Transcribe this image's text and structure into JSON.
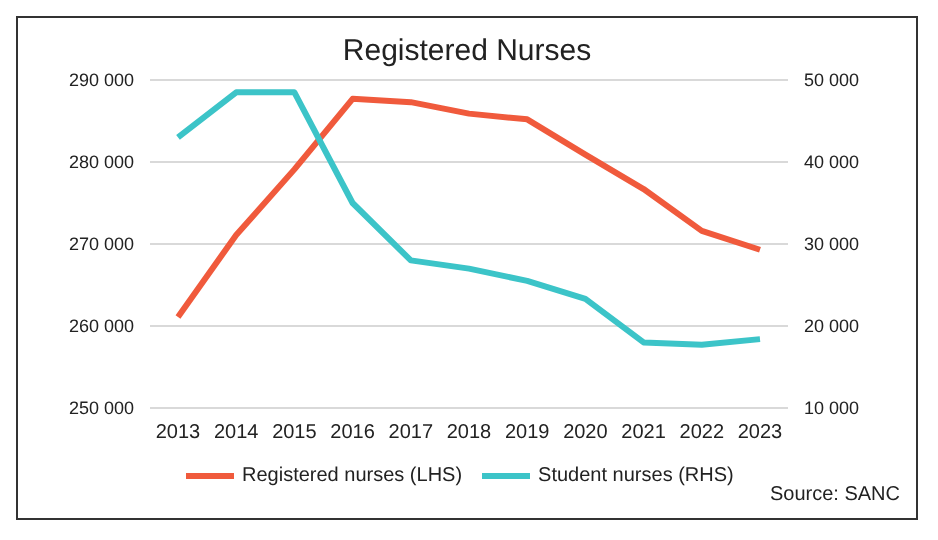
{
  "chart_data": {
    "type": "line",
    "title": "Registered Nurses",
    "categories": [
      "2013",
      "2014",
      "2015",
      "2016",
      "2017",
      "2018",
      "2019",
      "2020",
      "2021",
      "2022",
      "2023"
    ],
    "series": [
      {
        "name": "Registered nurses (LHS)",
        "color": "#f05a3c",
        "values": [
          261100,
          271100,
          279100,
          287700,
          287300,
          285900,
          285200,
          280900,
          276700,
          271600,
          269300
        ]
      },
      {
        "name": "Student nurses (RHS)",
        "color": "#3cc4c8",
        "axis": "y2",
        "values": [
          43000,
          48500,
          48500,
          35000,
          28000,
          27000,
          25500,
          23300,
          18000,
          17700,
          18400
        ]
      }
    ],
    "ylim": [
      250000,
      290000
    ],
    "yticks": [
      {
        "value": 250000,
        "label": "250 000"
      },
      {
        "value": 260000,
        "label": "260 000"
      },
      {
        "value": 270000,
        "label": "270 000"
      },
      {
        "value": 280000,
        "label": "280 000"
      },
      {
        "value": 290000,
        "label": "290 000"
      }
    ],
    "y2lim": [
      10000,
      50000
    ],
    "y2ticks": [
      {
        "value": 10000,
        "label": "10 000"
      },
      {
        "value": 20000,
        "label": "20 000"
      },
      {
        "value": 30000,
        "label": "30 000"
      },
      {
        "value": 40000,
        "label": "40 000"
      },
      {
        "value": 50000,
        "label": "50 000"
      }
    ],
    "grid": "y",
    "legend": "bottom",
    "marker": "none",
    "line_style": "solid",
    "annotations": [
      "Source: SANC"
    ]
  }
}
